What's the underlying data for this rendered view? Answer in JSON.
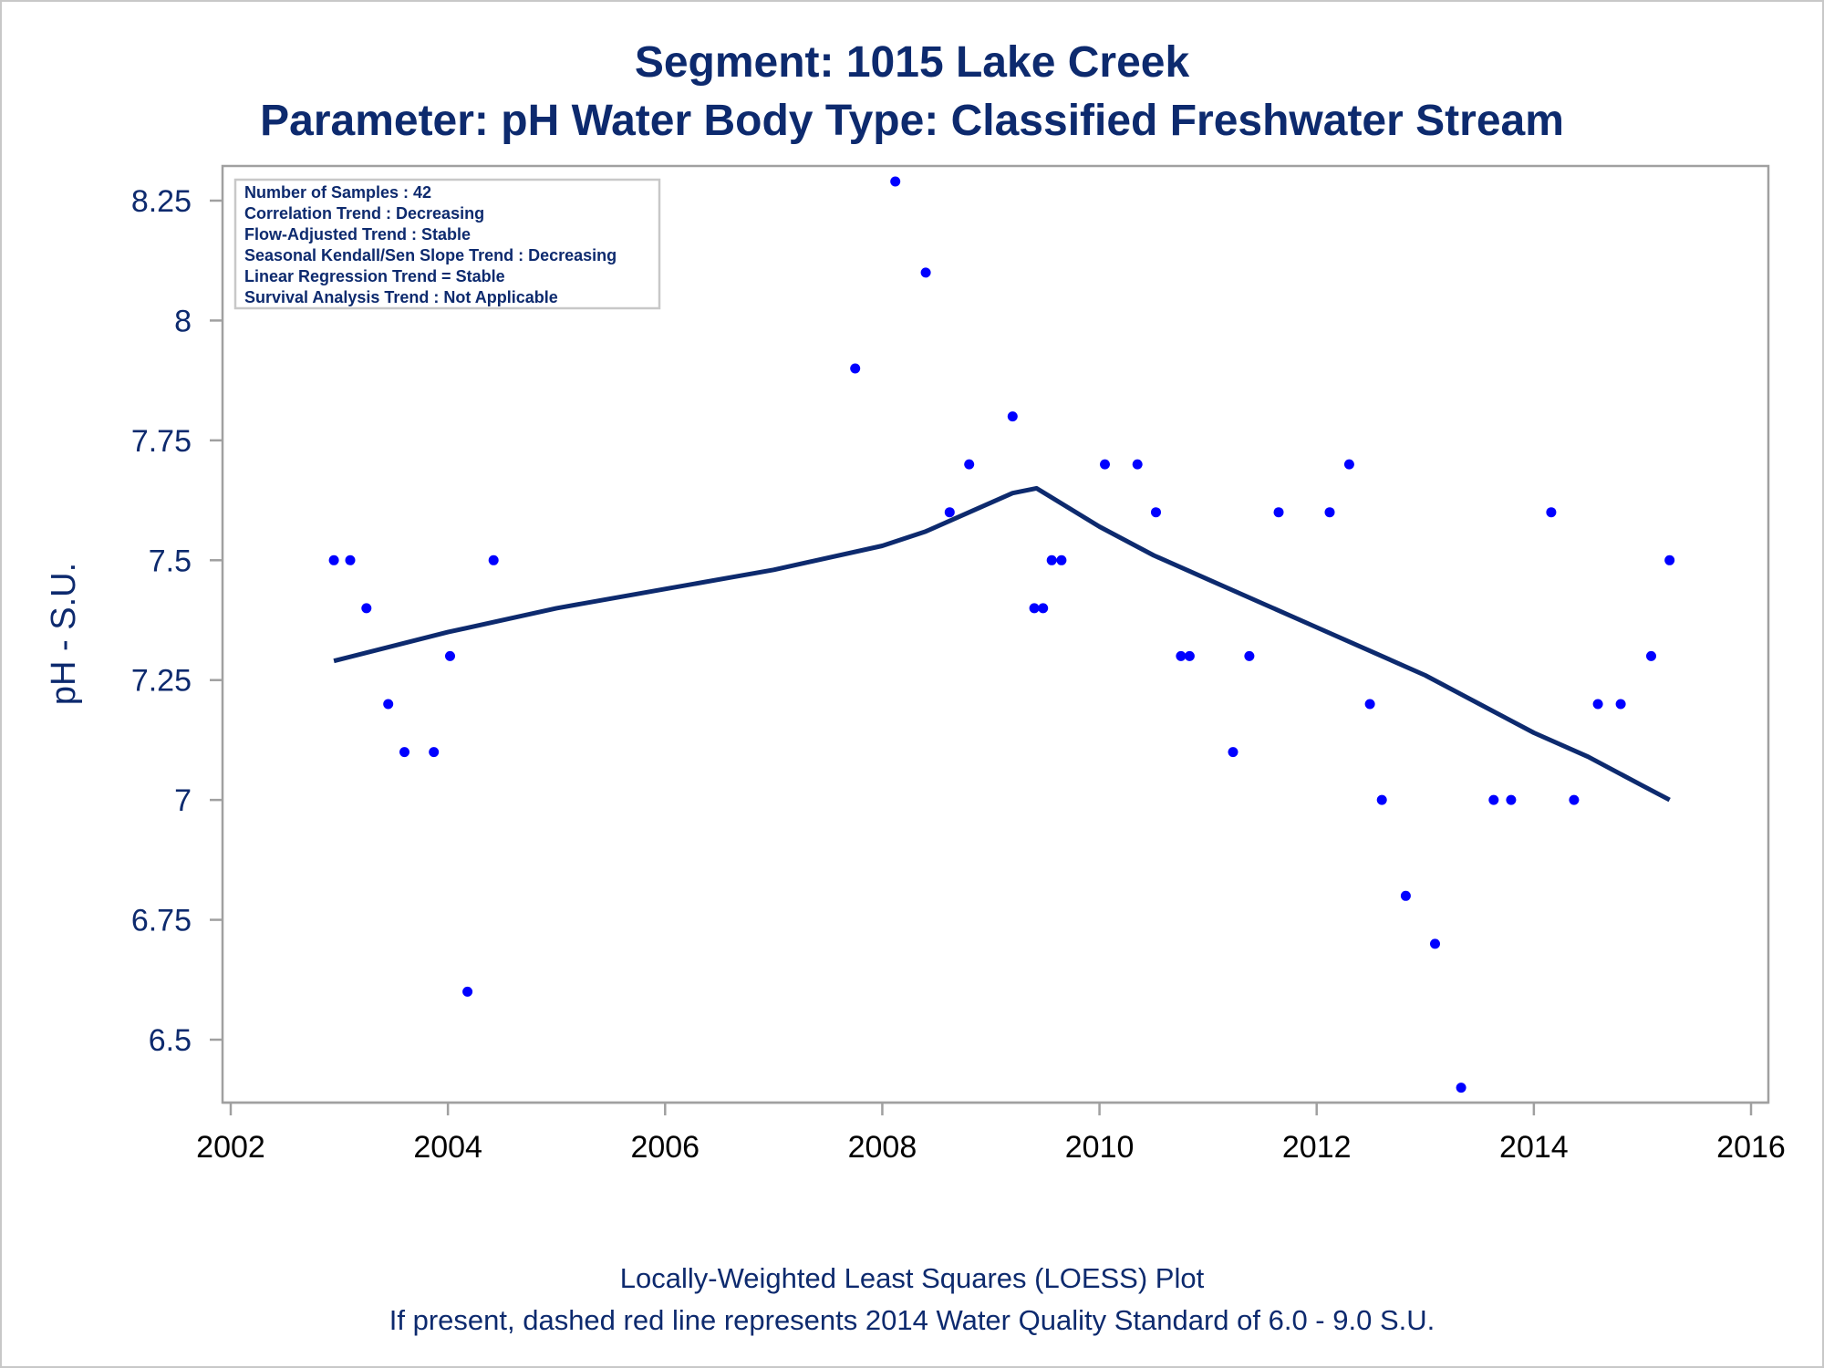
{
  "colors": {
    "text": "#0d2a6e",
    "marker": "#0000ff",
    "trend_line": "#0d2a6e",
    "frame": "#a0a0a0",
    "x_tick_text": "#000000"
  },
  "chart_data": {
    "type": "scatter",
    "title": "Segment: 1015  Lake Creek",
    "subtitle": "Parameter: pH   Water Body Type: Classified Freshwater Stream",
    "xlabel": "",
    "ylabel": "pH - S.U.",
    "xlim": [
      2002,
      2016
    ],
    "ylim": [
      6.39,
      8.33
    ],
    "x_ticks": [
      2002,
      2004,
      2006,
      2008,
      2010,
      2012,
      2014,
      2016
    ],
    "y_ticks": [
      6.5,
      6.75,
      7,
      7.25,
      7.5,
      7.75,
      8,
      8.25
    ],
    "y_tick_labels": [
      "6.5",
      "6.75",
      "7",
      "7.25",
      "7.5",
      "7.75",
      "8",
      "8.25"
    ],
    "grid": false,
    "legend_placement": "top-left",
    "stats": [
      "Number of Samples : 42",
      "Correlation Trend : Decreasing",
      "Flow-Adjusted Trend : Stable",
      "Seasonal Kendall/Sen Slope Trend : Decreasing",
      "Linear Regression Trend = Stable",
      "Survival Analysis Trend : Not Applicable"
    ],
    "series": [
      {
        "type": "scatter",
        "x": [
          2002.95,
          2003.1,
          2003.25,
          2003.45,
          2003.6,
          2003.87,
          2004.02,
          2004.18,
          2004.42,
          2007.75,
          2008.12,
          2008.4,
          2008.62,
          2008.8,
          2009.2,
          2009.4,
          2009.48,
          2009.56,
          2009.65,
          2010.05,
          2010.35,
          2010.52,
          2010.75,
          2010.83,
          2011.23,
          2011.38,
          2011.65,
          2012.12,
          2012.3,
          2012.49,
          2012.6,
          2012.82,
          2013.09,
          2013.33,
          2013.63,
          2013.79,
          2014.16,
          2014.37,
          2014.59,
          2014.8,
          2015.08,
          2015.25
        ],
        "y": [
          7.5,
          7.5,
          7.4,
          7.2,
          7.1,
          7.1,
          7.3,
          6.6,
          7.5,
          7.9,
          8.29,
          8.1,
          7.6,
          7.7,
          7.8,
          7.4,
          7.4,
          7.5,
          7.5,
          7.7,
          7.7,
          7.6,
          7.3,
          7.3,
          7.1,
          7.3,
          7.6,
          7.6,
          7.7,
          7.2,
          7.0,
          6.8,
          6.7,
          6.4,
          7.0,
          7.0,
          7.6,
          7.0,
          7.2,
          7.2,
          7.3,
          7.5
        ]
      },
      {
        "type": "line",
        "x": [
          2002.95,
          2004.0,
          2005.0,
          2006.0,
          2007.0,
          2008.0,
          2008.4,
          2008.8,
          2009.2,
          2009.42,
          2010.0,
          2010.5,
          2011.0,
          2011.5,
          2012.0,
          2012.5,
          2013.0,
          2013.5,
          2014.0,
          2014.5,
          2015.0,
          2015.25
        ],
        "y": [
          7.29,
          7.35,
          7.4,
          7.44,
          7.48,
          7.53,
          7.56,
          7.6,
          7.64,
          7.65,
          7.57,
          7.51,
          7.46,
          7.41,
          7.36,
          7.31,
          7.26,
          7.2,
          7.14,
          7.09,
          7.03,
          7.0
        ]
      }
    ],
    "footnotes": [
      "Locally-Weighted Least Squares (LOESS) Plot",
      "If present, dashed red line represents 2014 Water Quality Standard of 6.0 - 9.0 S.U."
    ]
  }
}
